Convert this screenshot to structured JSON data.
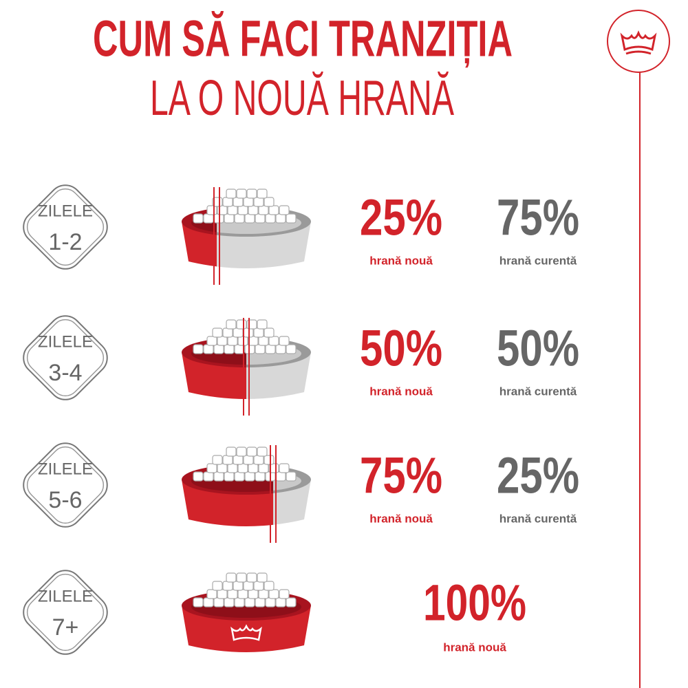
{
  "title": {
    "line1": "CUM SĂ FACI TRANZIȚIA",
    "line2": "LA O NOUĂ HRANĂ"
  },
  "rows": [
    {
      "label": "ZILELE",
      "days": "1-2",
      "new_pct": "25%",
      "new_text": "hrană nouă",
      "current_pct": "75%",
      "current_text": "hrană curentă"
    },
    {
      "label": "ZILELE",
      "days": "3-4",
      "new_pct": "50%",
      "new_text": "hrană nouă",
      "current_pct": "50%",
      "current_text": "hrană curentă"
    },
    {
      "label": "ZILELE",
      "days": "5-6",
      "new_pct": "75%",
      "new_text": "hrană nouă",
      "current_pct": "25%",
      "current_text": "hrană curentă"
    },
    {
      "label": "ZILELE",
      "days": "7+",
      "new_pct": "100%",
      "new_text": "hrană nouă"
    }
  ]
}
